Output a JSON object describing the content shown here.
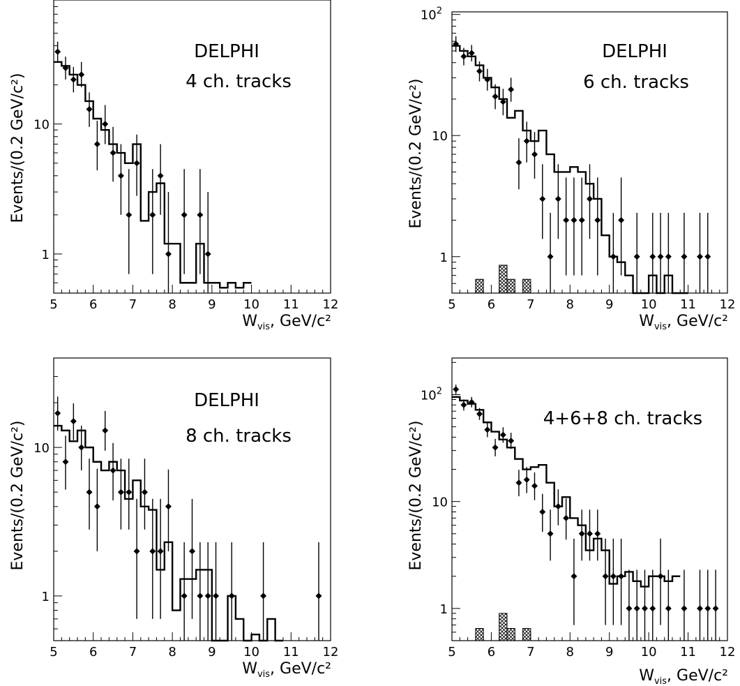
{
  "chart_data": [
    {
      "type": "histogram",
      "scale_y": "log",
      "xlim": [
        5,
        12
      ],
      "ylim": [
        0.5,
        90
      ],
      "xticks": [
        "5",
        "6",
        "7",
        "8",
        "9",
        "10",
        "11",
        "12"
      ],
      "yticks": [
        {
          "value": 1,
          "label": "1"
        },
        {
          "value": 10,
          "label": "10"
        }
      ],
      "ylabel": "Events/(0.2 GeV/c²)",
      "xlabel": {
        "main": "W",
        "sub": "vis",
        "rest": ", GeV/c²"
      },
      "annotations": [
        "DELPHI",
        "4 ch. tracks"
      ],
      "histogram": {
        "bin_edges": [
          5.0,
          5.2,
          5.4,
          5.6,
          5.8,
          6.0,
          6.2,
          6.4,
          6.6,
          6.8,
          7.0,
          7.2,
          7.4,
          7.6,
          7.8,
          8.0,
          8.2,
          8.4,
          8.6,
          8.8,
          9.0,
          9.2,
          9.4,
          9.6,
          9.8,
          10.0
        ],
        "values": [
          30,
          28,
          24,
          20,
          15,
          11,
          9,
          7,
          6,
          5,
          7,
          1.8,
          3,
          3.5,
          1.2,
          1.2,
          0.6,
          0.6,
          1.2,
          0.6,
          0.6,
          0.55,
          0.6,
          0.55,
          0.6
        ]
      },
      "data_points": {
        "x": [
          5.1,
          5.3,
          5.5,
          5.7,
          5.9,
          6.1,
          6.3,
          6.5,
          6.7,
          6.9,
          7.1,
          7.5,
          7.7,
          7.9,
          8.3,
          8.7,
          8.9
        ],
        "y": [
          36,
          27,
          22,
          24,
          13,
          7,
          10,
          6,
          4,
          2,
          5,
          2,
          4,
          1,
          2,
          2,
          1
        ],
        "err_lo": [
          6,
          5,
          4.5,
          4.8,
          3.5,
          2.6,
          3,
          2.4,
          2,
          1.3,
          2.2,
          1.3,
          2,
          0.7,
          1.3,
          1.3,
          0.7
        ],
        "err_hi": [
          7,
          6,
          5.5,
          6,
          4.5,
          3.6,
          4,
          3.5,
          3,
          2.5,
          3.3,
          2.5,
          3,
          2,
          2.5,
          2.5,
          2
        ]
      }
    },
    {
      "type": "histogram",
      "scale_y": "log",
      "xlim": [
        5,
        12
      ],
      "ylim": [
        0.5,
        105
      ],
      "xticks": [
        "5",
        "6",
        "7",
        "8",
        "9",
        "10",
        "11",
        "12"
      ],
      "yticks": [
        {
          "value": 1,
          "label": "1"
        },
        {
          "value": 10,
          "label": "10"
        },
        {
          "value": 100,
          "label": "10",
          "sup": "2"
        }
      ],
      "ylabel": "Events/(0.2 GeV/c²)",
      "xlabel": {
        "main": "W",
        "sub": "vis",
        "rest": ", GeV/c²"
      },
      "annotations": [
        "DELPHI",
        "6 ch. tracks"
      ],
      "histogram": {
        "bin_edges": [
          5.0,
          5.2,
          5.4,
          5.6,
          5.8,
          6.0,
          6.2,
          6.4,
          6.6,
          6.8,
          7.0,
          7.2,
          7.4,
          7.6,
          7.8,
          8.0,
          8.2,
          8.4,
          8.6,
          8.8,
          9.0,
          9.2,
          9.4,
          9.6,
          9.8,
          10.0,
          10.2,
          10.4,
          10.6,
          10.8,
          11.0
        ],
        "values": [
          55,
          50,
          45,
          38,
          30,
          25,
          20,
          14,
          16,
          11,
          9,
          11,
          7,
          5,
          5,
          5.5,
          5,
          4,
          3,
          1.5,
          1,
          0.9,
          0.7,
          0.5,
          0.5,
          0.7,
          0.5,
          0.7,
          0.5,
          0.5
        ]
      },
      "shaded_bins": [
        {
          "x0": 5.6,
          "x1": 5.8,
          "value": 0.65
        },
        {
          "x0": 6.2,
          "x1": 6.4,
          "value": 0.85
        },
        {
          "x0": 6.4,
          "x1": 6.6,
          "value": 0.65
        },
        {
          "x0": 6.8,
          "x1": 7.0,
          "value": 0.65
        }
      ],
      "data_points": {
        "x": [
          5.1,
          5.3,
          5.5,
          5.7,
          5.9,
          6.1,
          6.3,
          6.5,
          6.7,
          6.9,
          7.1,
          7.3,
          7.5,
          7.7,
          7.9,
          8.1,
          8.3,
          8.5,
          8.7,
          9.1,
          9.3,
          9.7,
          10.1,
          10.3,
          10.5,
          10.9,
          11.3,
          11.5
        ],
        "y": [
          57,
          45,
          48,
          34,
          29,
          21,
          19,
          24,
          6,
          9,
          7,
          3,
          1,
          3,
          2,
          2,
          2,
          3,
          2,
          1,
          2,
          1,
          1,
          1,
          1,
          1,
          1,
          1
        ],
        "err_lo": [
          8,
          7,
          7,
          6,
          5.5,
          4.5,
          4.3,
          5,
          2.4,
          3,
          2.6,
          1.6,
          0.6,
          1.6,
          1.3,
          1.3,
          1.3,
          1.6,
          1.3,
          0.6,
          1.3,
          0.6,
          0.6,
          0.6,
          0.6,
          0.6,
          0.6,
          0.6
        ],
        "err_hi": [
          9,
          8,
          8,
          7,
          6.5,
          5.5,
          5.3,
          6,
          3.5,
          4,
          3.7,
          2.8,
          1.3,
          2.8,
          2.5,
          2.5,
          2.5,
          2.8,
          2.5,
          1.3,
          2.5,
          1.3,
          1.3,
          1.3,
          1.3,
          1.3,
          1.3,
          1.3
        ]
      }
    },
    {
      "type": "histogram",
      "scale_y": "log",
      "xlim": [
        5,
        12
      ],
      "ylim": [
        0.5,
        40
      ],
      "xticks": [
        "5",
        "6",
        "7",
        "8",
        "9",
        "10",
        "11",
        "12"
      ],
      "yticks": [
        {
          "value": 1,
          "label": "1"
        },
        {
          "value": 10,
          "label": "10"
        }
      ],
      "ylabel": "Events/(0.2 GeV/c²)",
      "xlabel": {
        "main": "W",
        "sub": "vis",
        "rest": ", GeV/c²"
      },
      "annotations": [
        "DELPHI",
        "8 ch. tracks"
      ],
      "histogram": {
        "bin_edges": [
          5.0,
          5.2,
          5.4,
          5.6,
          5.8,
          6.0,
          6.2,
          6.4,
          6.6,
          6.8,
          7.0,
          7.2,
          7.4,
          7.6,
          7.8,
          8.0,
          8.2,
          8.4,
          8.6,
          8.8,
          9.0,
          9.2,
          9.4,
          9.6,
          9.8,
          10.0,
          10.2,
          10.4,
          10.6,
          10.8
        ],
        "values": [
          14,
          13,
          11,
          13,
          10,
          8,
          7,
          8,
          7,
          4.5,
          6,
          4,
          3.8,
          1.5,
          2.3,
          0.8,
          1.3,
          1.3,
          1.5,
          1.5,
          0.5,
          0.5,
          1.0,
          0.7,
          0.5,
          0.55,
          0.5,
          0.7,
          0.5
        ]
      },
      "data_points": {
        "x": [
          5.1,
          5.3,
          5.5,
          5.7,
          5.9,
          6.1,
          6.3,
          6.5,
          6.7,
          6.9,
          7.1,
          7.3,
          7.5,
          7.7,
          7.9,
          8.3,
          8.5,
          8.7,
          8.9,
          9.1,
          9.5,
          10.3,
          11.7
        ],
        "y": [
          17,
          8,
          15,
          10,
          5,
          4,
          13,
          7,
          5,
          5,
          2,
          5,
          2,
          2,
          4,
          1,
          2,
          1,
          1,
          1,
          1,
          1,
          1
        ],
        "err_lo": [
          4,
          2.8,
          3.8,
          3,
          2.2,
          2,
          3.5,
          2.6,
          2.2,
          2.2,
          1.3,
          2.2,
          1.3,
          1.3,
          2,
          0.6,
          1.3,
          0.6,
          0.6,
          0.6,
          0.6,
          0.6,
          0.6
        ],
        "err_hi": [
          5,
          4,
          4.8,
          4,
          3.4,
          3.2,
          4.6,
          3.7,
          3.4,
          3.4,
          2.5,
          3.4,
          2.5,
          2.5,
          3.1,
          1.3,
          2.5,
          1.3,
          1.3,
          1.3,
          1.3,
          1.3,
          1.3
        ]
      }
    },
    {
      "type": "histogram",
      "scale_y": "log",
      "xlim": [
        5,
        12
      ],
      "ylim": [
        0.5,
        220
      ],
      "xticks": [
        "5",
        "6",
        "7",
        "8",
        "9",
        "10",
        "11",
        "12"
      ],
      "yticks": [
        {
          "value": 1,
          "label": "1"
        },
        {
          "value": 10,
          "label": "10"
        },
        {
          "value": 100,
          "label": "10",
          "sup": "2"
        }
      ],
      "ylabel": "Events/(0.2 GeV/c²)",
      "xlabel": {
        "main": "W",
        "sub": "vis",
        "rest": ", GeV/c²"
      },
      "annotations": [
        "4+6+8 ch. tracks"
      ],
      "histogram": {
        "bin_edges": [
          5.0,
          5.2,
          5.4,
          5.6,
          5.8,
          6.0,
          6.2,
          6.4,
          6.6,
          6.8,
          7.0,
          7.2,
          7.4,
          7.6,
          7.8,
          8.0,
          8.2,
          8.4,
          8.6,
          8.8,
          9.0,
          9.2,
          9.4,
          9.6,
          9.8,
          10.0,
          10.2,
          10.4,
          10.6,
          10.8
        ],
        "values": [
          95,
          88,
          82,
          72,
          55,
          45,
          38,
          32,
          25,
          20,
          21,
          22,
          15,
          9,
          11,
          7,
          6,
          3.5,
          4.5,
          3.5,
          1.7,
          2,
          2.2,
          1.8,
          1.6,
          2,
          2,
          1.8,
          2,
          2
        ]
      },
      "shaded_bins": [
        {
          "x0": 5.6,
          "x1": 5.8,
          "value": 0.65
        },
        {
          "x0": 6.2,
          "x1": 6.4,
          "value": 0.9
        },
        {
          "x0": 6.4,
          "x1": 6.6,
          "value": 0.65
        },
        {
          "x0": 6.8,
          "x1": 7.0,
          "value": 0.65
        }
      ],
      "data_points": {
        "x": [
          5.1,
          5.3,
          5.5,
          5.7,
          5.9,
          6.1,
          6.3,
          6.5,
          6.7,
          6.9,
          7.1,
          7.3,
          7.5,
          7.7,
          7.9,
          8.1,
          8.3,
          8.5,
          8.7,
          8.9,
          9.1,
          9.3,
          9.5,
          9.7,
          9.9,
          10.1,
          10.3,
          10.5,
          10.9,
          11.3,
          11.5,
          11.7
        ],
        "y": [
          112,
          80,
          85,
          66,
          47,
          32,
          42,
          37,
          15,
          16,
          14,
          8,
          5,
          9,
          7,
          2,
          5,
          5,
          5,
          2,
          2,
          2,
          1,
          1,
          1,
          1,
          2,
          1,
          1,
          1,
          1,
          1
        ],
        "err_lo": [
          11,
          9,
          9,
          8,
          7,
          5.5,
          6.5,
          6,
          3.8,
          4,
          3.7,
          2.8,
          2.2,
          3,
          2.6,
          1.3,
          2.2,
          2.2,
          2.2,
          1.3,
          1.3,
          1.3,
          0.6,
          0.6,
          0.6,
          0.6,
          1.3,
          0.6,
          0.6,
          0.6,
          0.6,
          0.6
        ],
        "err_hi": [
          12,
          10,
          10,
          9,
          8,
          6.5,
          7.5,
          7,
          4.8,
          5,
          4.7,
          3.8,
          3.4,
          4,
          3.7,
          2.5,
          3.4,
          3.4,
          3.4,
          2.5,
          2.5,
          2.5,
          1.3,
          1.3,
          1.3,
          1.3,
          2.5,
          1.3,
          1.3,
          1.3,
          1.3,
          1.3
        ]
      }
    }
  ]
}
